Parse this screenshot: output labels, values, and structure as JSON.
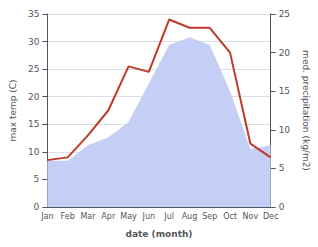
{
  "chart_data": {
    "type": "line",
    "xlabel": "date (month)",
    "ylabel": "max temp (C)",
    "y2label": "med. precipitation (kg/m2)",
    "categories": [
      "Jan",
      "Feb",
      "Mar",
      "Apr",
      "May",
      "Jun",
      "Jul",
      "Aug",
      "Sep",
      "Oct",
      "Nov",
      "Dec"
    ],
    "series": [
      {
        "type": "area",
        "axis": "y2",
        "color": "#c5cef5",
        "values": [
          6.0,
          6.0,
          8.0,
          9.0,
          11.0,
          16.0,
          21.0,
          22.0,
          21.0,
          15.0,
          7.5,
          8.0
        ]
      },
      {
        "type": "line",
        "color": "#c0392b",
        "values": [
          8.5,
          9.0,
          13.0,
          17.5,
          25.5,
          24.5,
          34.0,
          32.5,
          32.5,
          28.0,
          11.5,
          9.0
        ]
      }
    ],
    "ylim": [
      0,
      35
    ],
    "yticks": [
      0,
      5,
      10,
      15,
      20,
      25,
      30,
      35
    ],
    "y2lim": [
      0,
      25
    ],
    "y2ticks": [
      0,
      5,
      10,
      15,
      20,
      25
    ],
    "grid": true
  }
}
